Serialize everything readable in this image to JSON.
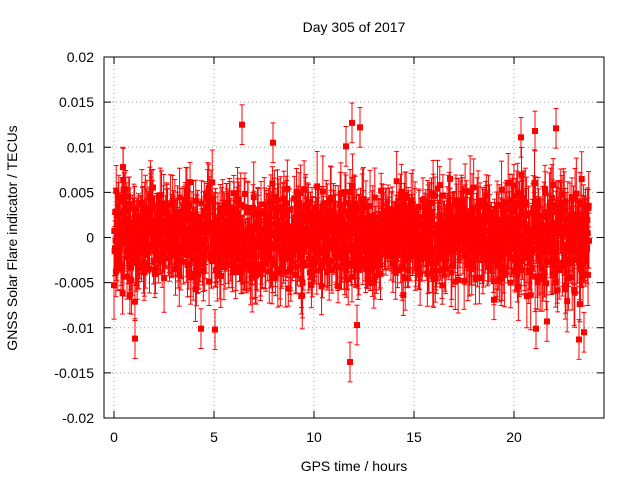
{
  "chart_data": {
    "type": "scatter",
    "title": "Day 305 of 2017",
    "xlabel": "GPS time / hours",
    "ylabel": "GNSS Solar Flare indicator / TECUs",
    "xlim": [
      -0.5,
      24.5
    ],
    "ylim": [
      -0.02,
      0.02
    ],
    "x_ticks": [
      0,
      5,
      10,
      15,
      20
    ],
    "x_tick_labels": [
      "0",
      "5",
      "10",
      "15",
      "20"
    ],
    "y_ticks": [
      -0.02,
      -0.015,
      -0.01,
      -0.005,
      0,
      0.005,
      0.01,
      0.015,
      0.02
    ],
    "y_tick_labels": [
      "-0.02",
      "-0.015",
      "-0.01",
      "-0.005",
      "0",
      "0.005",
      "0.01",
      "0.015",
      "0.02"
    ],
    "grid": true,
    "error_bars": true,
    "marker": "square",
    "color": "#ff0000",
    "x_range": [
      0,
      23.75
    ],
    "band_y_range": [
      -0.007,
      0.008
    ],
    "highlights": [
      {
        "x": 1.05,
        "y": -0.0112
      },
      {
        "x": 6.4,
        "y": 0.0125
      },
      {
        "x": 7.95,
        "y": 0.0105
      },
      {
        "x": 11.6,
        "y": 0.0101
      },
      {
        "x": 11.8,
        "y": -0.0138
      },
      {
        "x": 11.9,
        "y": 0.0127
      },
      {
        "x": 12.3,
        "y": 0.0122
      },
      {
        "x": 12.15,
        "y": -0.0097
      },
      {
        "x": 20.35,
        "y": 0.0111
      },
      {
        "x": 21.05,
        "y": 0.0118
      },
      {
        "x": 21.1,
        "y": -0.0101
      },
      {
        "x": 21.65,
        "y": -0.0093
      },
      {
        "x": 22.1,
        "y": 0.0121
      },
      {
        "x": 23.25,
        "y": -0.0113
      },
      {
        "x": 23.5,
        "y": -0.0105
      },
      {
        "x": 4.35,
        "y": -0.0101
      },
      {
        "x": 5.05,
        "y": -0.0102
      },
      {
        "x": 0.45,
        "y": 0.0078
      },
      {
        "x": 16.8,
        "y": 0.0065
      },
      {
        "x": 19.0,
        "y": -0.0069
      }
    ]
  }
}
